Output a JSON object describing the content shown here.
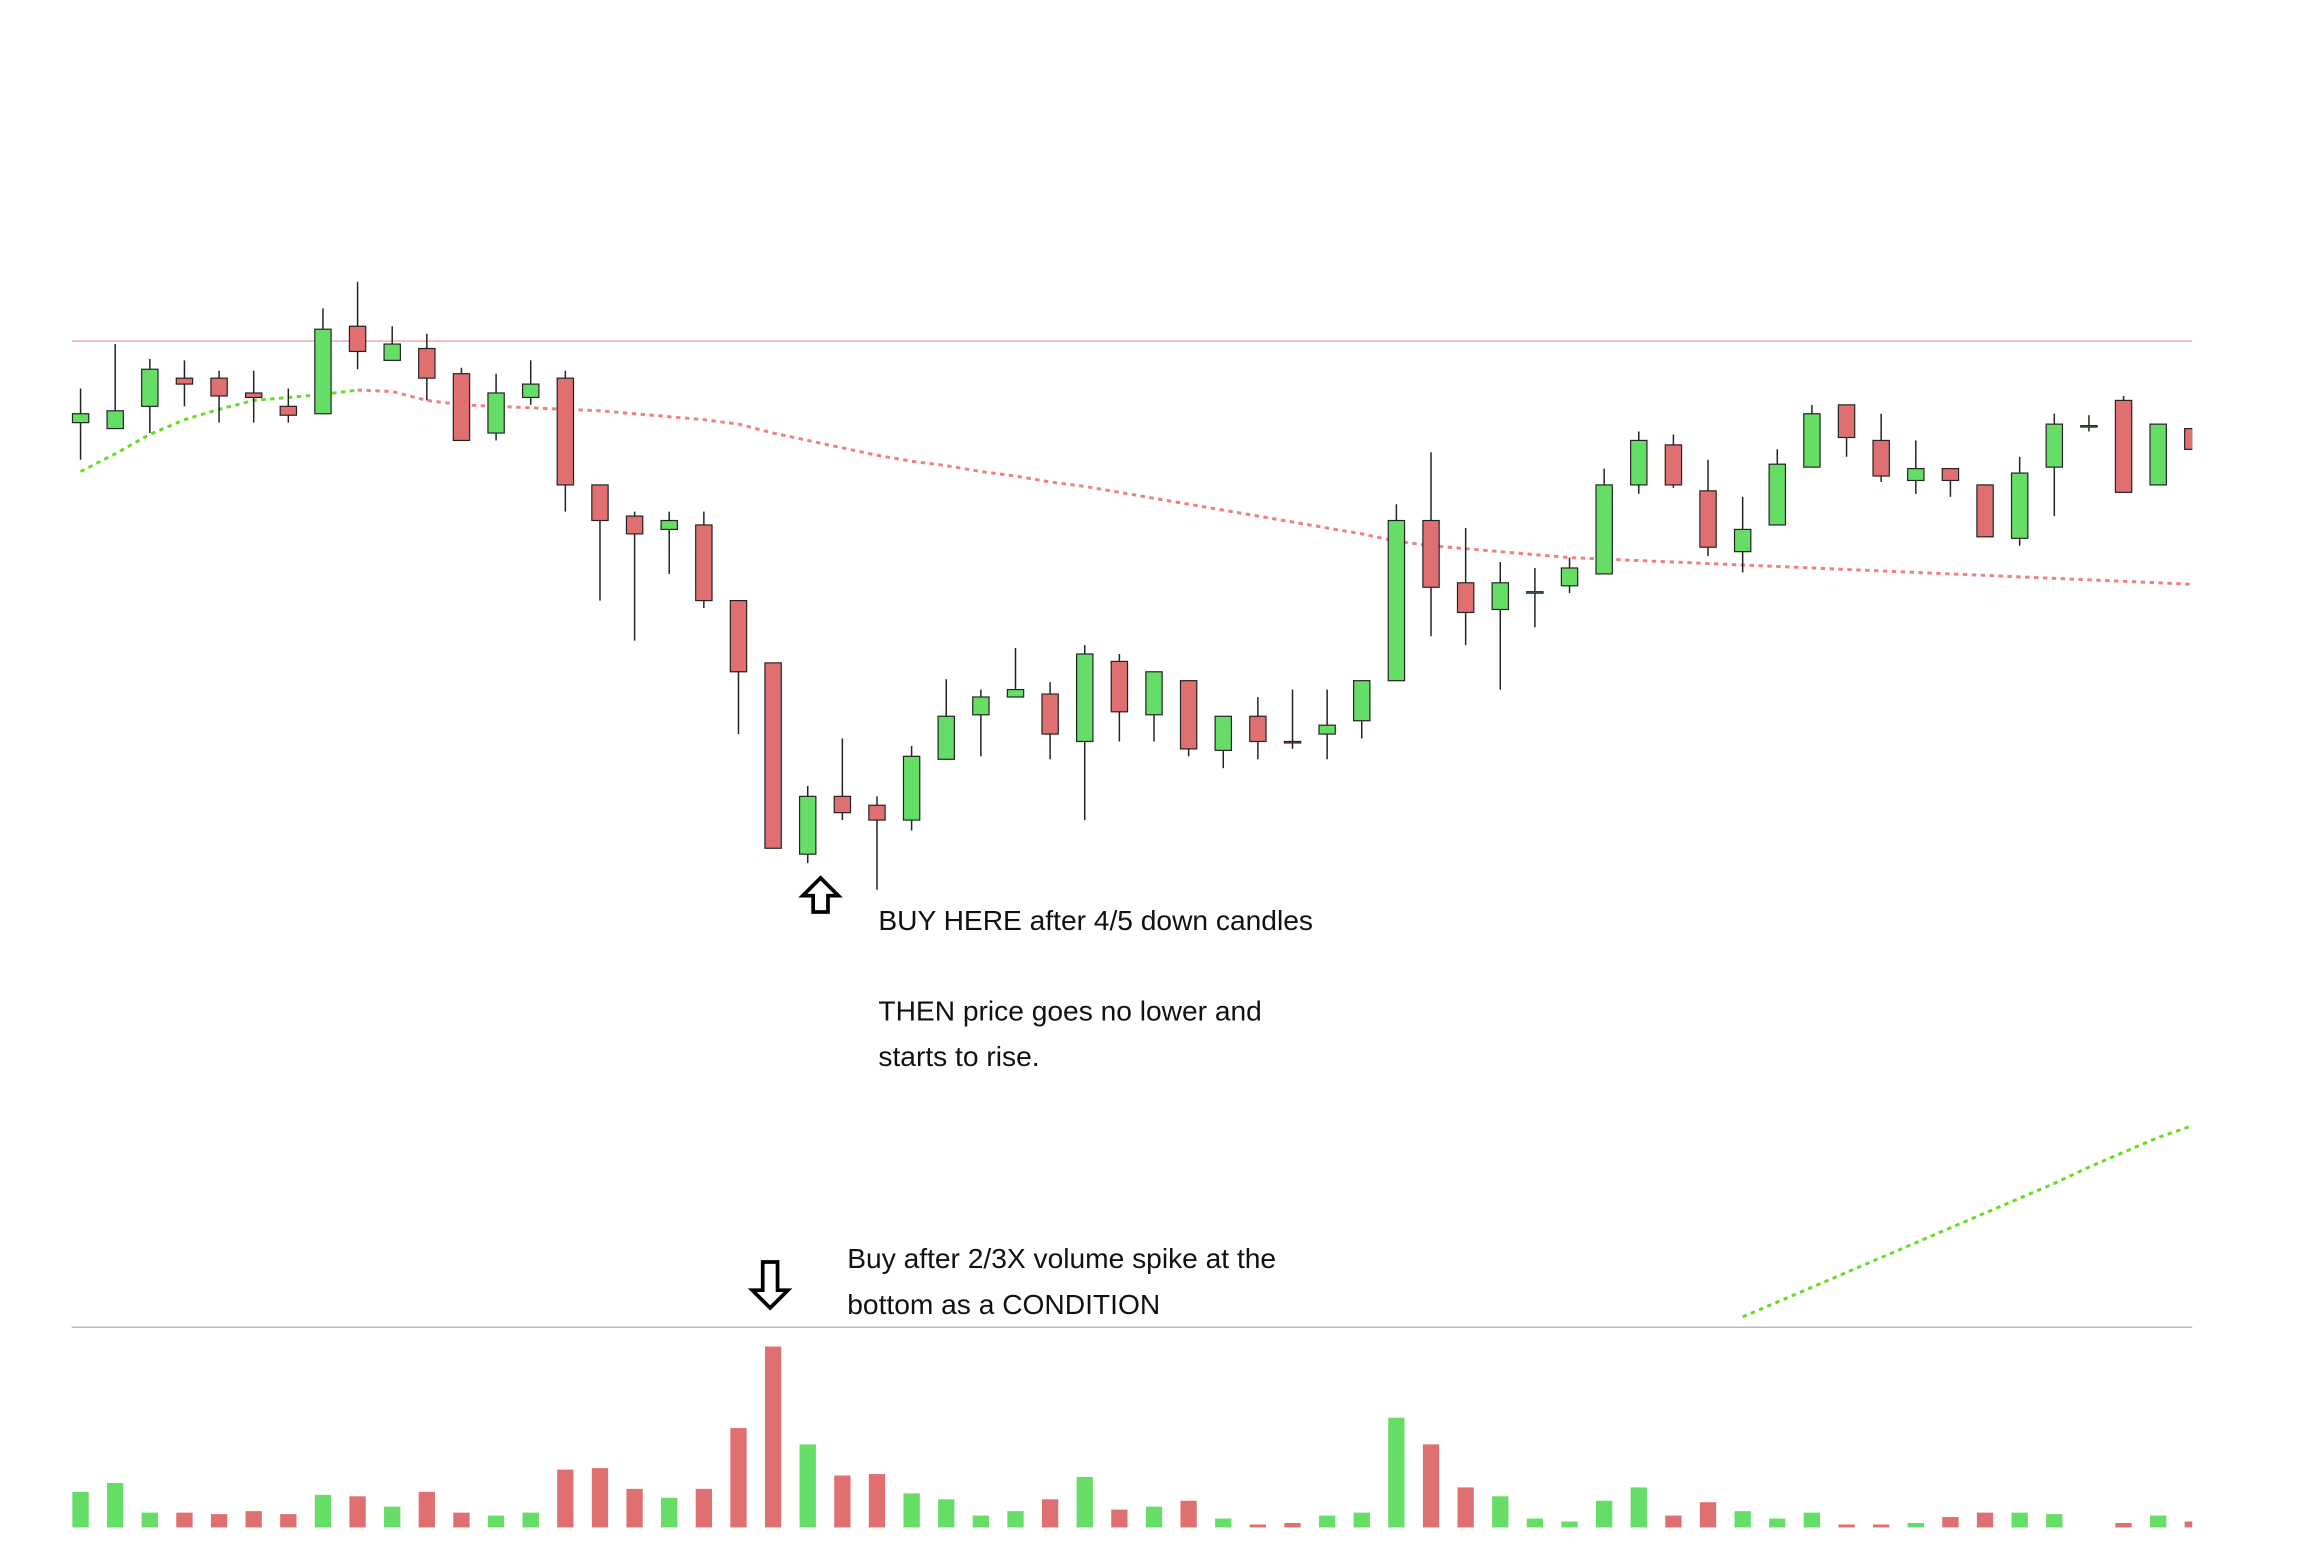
{
  "chart_data": {
    "type": "candlestick",
    "up_color": "#66dd66",
    "down_color": "#e07070",
    "hline": 770,
    "hline_color": "#f4b8b8",
    "ylim": [
      105,
      1000
    ],
    "volume_ylim": [
      0,
      122
    ],
    "open": [
      715,
      711,
      726,
      745,
      745,
      735,
      726,
      721,
      780,
      757,
      765,
      748,
      708,
      732,
      745,
      673,
      652,
      643,
      646,
      595,
      553,
      424,
      463,
      457,
      447,
      488,
      518,
      530,
      532,
      500,
      554,
      518,
      541,
      494,
      517,
      500,
      505,
      514,
      541,
      649,
      607,
      589,
      601,
      605,
      613,
      673,
      700,
      669,
      628,
      646,
      685,
      727,
      703,
      676,
      684,
      673,
      637,
      685,
      713,
      730,
      673,
      711
    ],
    "high": [
      738,
      768,
      758,
      757,
      750,
      750,
      738,
      792,
      810,
      780,
      775,
      752,
      748,
      757,
      750,
      673,
      655,
      655,
      655,
      595,
      553,
      470,
      502,
      463,
      497,
      542,
      535,
      563,
      540,
      565,
      559,
      547,
      541,
      517,
      530,
      535,
      535,
      541,
      660,
      695,
      644,
      621,
      617,
      624,
      684,
      709,
      707,
      690,
      665,
      697,
      727,
      727,
      721,
      703,
      684,
      673,
      692,
      721,
      720,
      733,
      714,
      711
    ],
    "low": [
      690,
      711,
      708,
      726,
      715,
      715,
      715,
      721,
      751,
      757,
      730,
      703,
      703,
      727,
      655,
      595,
      568,
      613,
      590,
      505,
      428,
      418,
      447,
      400,
      440,
      488,
      490,
      530,
      488,
      447,
      500,
      500,
      490,
      482,
      488,
      495,
      488,
      502,
      541,
      571,
      565,
      535,
      577,
      600,
      613,
      667,
      671,
      625,
      614,
      646,
      685,
      692,
      675,
      667,
      665,
      638,
      632,
      652,
      709,
      668,
      673,
      697
    ],
    "close": [
      721,
      723,
      751,
      741,
      733,
      732,
      720,
      778,
      763,
      768,
      745,
      703,
      735,
      741,
      673,
      649,
      640,
      649,
      595,
      547,
      428,
      463,
      452,
      447,
      490,
      517,
      530,
      535,
      505,
      559,
      520,
      547,
      495,
      517,
      500,
      499,
      511,
      541,
      649,
      604,
      587,
      607,
      601,
      617,
      673,
      703,
      673,
      631,
      643,
      687,
      721,
      705,
      679,
      684,
      676,
      638,
      681,
      714,
      713,
      668,
      714,
      697
    ],
    "volume": [
      24,
      30,
      10,
      10,
      9,
      11,
      9,
      22,
      21,
      14,
      24,
      10,
      8,
      10,
      39,
      40,
      26,
      20,
      26,
      67,
      122,
      56,
      35,
      36,
      23,
      19,
      8,
      11,
      19,
      34,
      12,
      14,
      18,
      6,
      2,
      3,
      8,
      10,
      74,
      56,
      27,
      21,
      6,
      4,
      18,
      27,
      8,
      17,
      11,
      6,
      10,
      2,
      2,
      3,
      7,
      10,
      10,
      9,
      0,
      3,
      8,
      4
    ],
    "lines": [
      {
        "color": "#66dd22",
        "values": [
          682,
          694,
          707,
          717,
          724,
          730,
          732,
          734,
          737,
          null,
          null,
          null,
          null,
          null,
          null,
          null,
          null,
          null,
          null,
          null,
          null,
          null,
          null,
          null,
          null,
          null,
          null,
          null,
          null,
          null,
          null,
          null,
          null,
          null,
          null,
          null,
          null,
          null,
          null,
          null,
          null,
          null,
          null,
          null,
          null,
          null,
          null,
          null,
          112,
          122,
          132,
          142,
          152,
          162,
          172,
          182,
          192,
          202,
          213,
          223,
          233,
          241
        ]
      },
      {
        "color": "#f08080",
        "values": [
          null,
          null,
          null,
          null,
          null,
          null,
          null,
          null,
          737,
          736,
          730,
          727,
          726,
          725,
          724,
          723,
          721,
          719,
          717,
          714,
          708,
          703,
          698,
          693,
          689,
          686,
          682,
          679,
          675,
          672,
          668,
          664,
          660,
          656,
          652,
          648,
          644,
          640,
          635,
          632,
          630,
          628,
          626,
          624,
          623,
          622,
          621,
          620,
          619,
          618,
          617,
          616,
          615,
          614,
          613,
          612,
          611,
          610,
          609,
          608,
          607,
          606
        ]
      }
    ],
    "annotations": [
      "BUY HERE after 4/5 down candles",
      "THEN price goes no lower and",
      "starts to rise.",
      "Buy after 2/3X volume spike at the",
      "bottom as a CONDITION"
    ]
  }
}
